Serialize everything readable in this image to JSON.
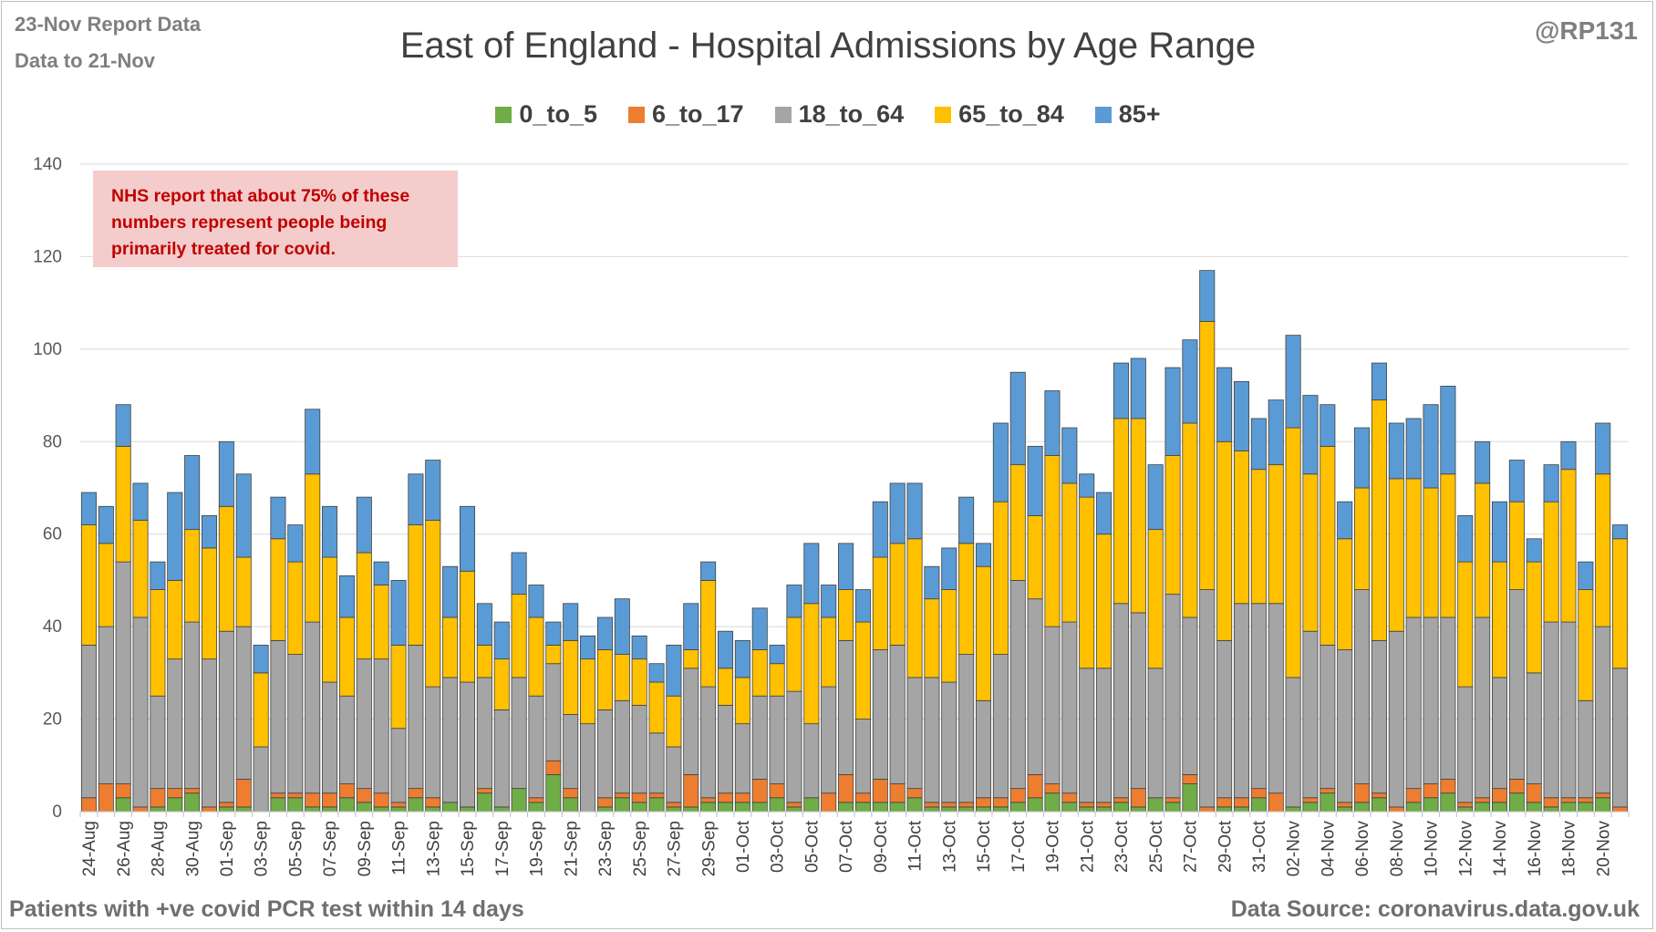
{
  "header": {
    "report_line": "23-Nov Report Data",
    "data_line": "Data to 21-Nov",
    "handle": "@RP131"
  },
  "footer": {
    "left": "Patients with  +ve covid PCR test within 14 days",
    "right": "Data Source: coronavirus.data.gov.uk"
  },
  "note": {
    "line1": "NHS report that about 75% of these",
    "line2": "numbers represent people being",
    "line3": "primarily treated for covid."
  },
  "colors": {
    "0_to_5": "#70ad47",
    "6_to_17": "#ed7d31",
    "18_to_64": "#a5a5a5",
    "65_to_84": "#ffc000",
    "85+": "#5b9bd5"
  },
  "chart_data": {
    "type": "bar",
    "stacked": true,
    "title": "East of England - Hospital Admissions by Age Range",
    "xlabel": "",
    "ylabel": "",
    "ylim": [
      0,
      140
    ],
    "yticks": [
      0,
      20,
      40,
      60,
      80,
      100,
      120,
      140
    ],
    "grid": true,
    "legend": "top-center",
    "categories": [
      "24-Aug",
      "25-Aug",
      "26-Aug",
      "27-Aug",
      "28-Aug",
      "29-Aug",
      "30-Aug",
      "31-Aug",
      "01-Sep",
      "02-Sep",
      "03-Sep",
      "04-Sep",
      "05-Sep",
      "06-Sep",
      "07-Sep",
      "08-Sep",
      "09-Sep",
      "10-Sep",
      "11-Sep",
      "12-Sep",
      "13-Sep",
      "14-Sep",
      "15-Sep",
      "16-Sep",
      "17-Sep",
      "18-Sep",
      "19-Sep",
      "20-Sep",
      "21-Sep",
      "22-Sep",
      "23-Sep",
      "24-Sep",
      "25-Sep",
      "26-Sep",
      "27-Sep",
      "28-Sep",
      "29-Sep",
      "30-Sep",
      "01-Oct",
      "02-Oct",
      "03-Oct",
      "04-Oct",
      "05-Oct",
      "06-Oct",
      "07-Oct",
      "08-Oct",
      "09-Oct",
      "10-Oct",
      "11-Oct",
      "12-Oct",
      "13-Oct",
      "14-Oct",
      "15-Oct",
      "16-Oct",
      "17-Oct",
      "18-Oct",
      "19-Oct",
      "20-Oct",
      "21-Oct",
      "22-Oct",
      "23-Oct",
      "24-Oct",
      "25-Oct",
      "26-Oct",
      "27-Oct",
      "28-Oct",
      "29-Oct",
      "30-Oct",
      "31-Oct",
      "01-Nov",
      "02-Nov",
      "03-Nov",
      "04-Nov",
      "05-Nov",
      "06-Nov",
      "07-Nov",
      "08-Nov",
      "09-Nov",
      "10-Nov",
      "11-Nov",
      "12-Nov",
      "13-Nov",
      "14-Nov",
      "15-Nov",
      "16-Nov",
      "17-Nov",
      "18-Nov",
      "19-Nov",
      "20-Nov",
      "21-Nov"
    ],
    "tick_labels": [
      "24-Aug",
      "",
      "26-Aug",
      "",
      "28-Aug",
      "",
      "30-Aug",
      "",
      "01-Sep",
      "",
      "03-Sep",
      "",
      "05-Sep",
      "",
      "07-Sep",
      "",
      "09-Sep",
      "",
      "11-Sep",
      "",
      "13-Sep",
      "",
      "15-Sep",
      "",
      "17-Sep",
      "",
      "19-Sep",
      "",
      "21-Sep",
      "",
      "23-Sep",
      "",
      "25-Sep",
      "",
      "27-Sep",
      "",
      "29-Sep",
      "",
      "01-Oct",
      "",
      "03-Oct",
      "",
      "05-Oct",
      "",
      "07-Oct",
      "",
      "09-Oct",
      "",
      "11-Oct",
      "",
      "13-Oct",
      "",
      "15-Oct",
      "",
      "17-Oct",
      "",
      "19-Oct",
      "",
      "21-Oct",
      "",
      "23-Oct",
      "",
      "25-Oct",
      "",
      "27-Oct",
      "",
      "29-Oct",
      "",
      "31-Oct",
      "",
      "02-Nov",
      "",
      "04-Nov",
      "",
      "06-Nov",
      "",
      "08-Nov",
      "",
      "10-Nov",
      "",
      "12-Nov",
      "",
      "14-Nov",
      "",
      "16-Nov",
      "",
      "18-Nov",
      "",
      "20-Nov",
      ""
    ],
    "series": [
      {
        "name": "0_to_5",
        "values": [
          0,
          0,
          3,
          0,
          1,
          3,
          4,
          0,
          1,
          1,
          0,
          3,
          3,
          1,
          1,
          3,
          2,
          1,
          1,
          3,
          1,
          2,
          1,
          4,
          1,
          5,
          2,
          8,
          3,
          0,
          1,
          3,
          2,
          3,
          1,
          1,
          2,
          2,
          2,
          2,
          3,
          1,
          3,
          0,
          2,
          2,
          2,
          2,
          3,
          1,
          1,
          1,
          1,
          1,
          2,
          3,
          4,
          2,
          1,
          1,
          2,
          1,
          3,
          2,
          6,
          0,
          1,
          1,
          3,
          0,
          1,
          2,
          4,
          1,
          2,
          3,
          0,
          2,
          3,
          4,
          1,
          2,
          2,
          4,
          2,
          1,
          2,
          2,
          3,
          0
        ]
      },
      {
        "name": "6_to_17",
        "values": [
          3,
          6,
          3,
          1,
          4,
          2,
          1,
          1,
          1,
          6,
          0,
          1,
          1,
          3,
          3,
          3,
          3,
          3,
          1,
          2,
          2,
          0,
          0,
          1,
          0,
          0,
          1,
          3,
          2,
          0,
          2,
          1,
          2,
          1,
          1,
          7,
          1,
          2,
          2,
          5,
          3,
          1,
          0,
          4,
          6,
          2,
          5,
          4,
          2,
          1,
          1,
          1,
          2,
          2,
          3,
          5,
          2,
          2,
          1,
          1,
          1,
          4,
          0,
          1,
          2,
          1,
          2,
          2,
          2,
          4,
          0,
          1,
          1,
          1,
          4,
          1,
          1,
          3,
          3,
          3,
          1,
          1,
          3,
          3,
          4,
          2,
          1,
          1,
          1,
          1
        ]
      },
      {
        "name": "18_to_64",
        "values": [
          33,
          34,
          48,
          41,
          20,
          28,
          36,
          32,
          37,
          33,
          14,
          33,
          30,
          37,
          24,
          19,
          28,
          29,
          16,
          31,
          24,
          27,
          27,
          24,
          21,
          24,
          22,
          21,
          16,
          19,
          19,
          20,
          19,
          13,
          12,
          23,
          24,
          19,
          15,
          18,
          19,
          24,
          16,
          23,
          29,
          16,
          28,
          30,
          24,
          27,
          26,
          32,
          21,
          31,
          45,
          38,
          34,
          37,
          29,
          29,
          42,
          38,
          28,
          44,
          34,
          47,
          34,
          42,
          40,
          41,
          28,
          36,
          31,
          33,
          42,
          33,
          38,
          37,
          36,
          35,
          25,
          39,
          24,
          41,
          24,
          38,
          38,
          21,
          36,
          30
        ]
      },
      {
        "name": "65_to_84",
        "values": [
          26,
          18,
          25,
          21,
          23,
          17,
          20,
          24,
          27,
          15,
          16,
          22,
          20,
          32,
          27,
          17,
          23,
          16,
          18,
          26,
          36,
          13,
          24,
          7,
          11,
          18,
          17,
          4,
          16,
          14,
          13,
          10,
          10,
          11,
          11,
          4,
          23,
          8,
          10,
          10,
          7,
          16,
          26,
          15,
          11,
          21,
          20,
          22,
          30,
          17,
          20,
          24,
          29,
          33,
          25,
          18,
          37,
          30,
          37,
          29,
          40,
          42,
          30,
          30,
          42,
          58,
          43,
          33,
          29,
          30,
          54,
          34,
          43,
          24,
          22,
          52,
          33,
          30,
          28,
          31,
          27,
          29,
          25,
          19,
          24,
          26,
          33,
          24,
          33,
          28
        ]
      },
      {
        "name": "85+",
        "values": [
          7,
          8,
          9,
          8,
          6,
          19,
          16,
          7,
          14,
          18,
          6,
          9,
          8,
          14,
          11,
          9,
          12,
          5,
          14,
          11,
          13,
          11,
          14,
          9,
          8,
          9,
          7,
          5,
          8,
          5,
          7,
          12,
          5,
          4,
          11,
          10,
          4,
          8,
          8,
          9,
          4,
          7,
          13,
          7,
          10,
          7,
          12,
          13,
          12,
          7,
          9,
          10,
          5,
          17,
          20,
          15,
          14,
          12,
          5,
          9,
          12,
          13,
          14,
          19,
          18,
          11,
          16,
          15,
          11,
          14,
          20,
          17,
          9,
          8,
          13,
          8,
          12,
          13,
          18,
          19,
          10,
          9,
          13,
          9,
          5,
          8,
          6,
          6,
          11,
          3
        ]
      }
    ]
  }
}
